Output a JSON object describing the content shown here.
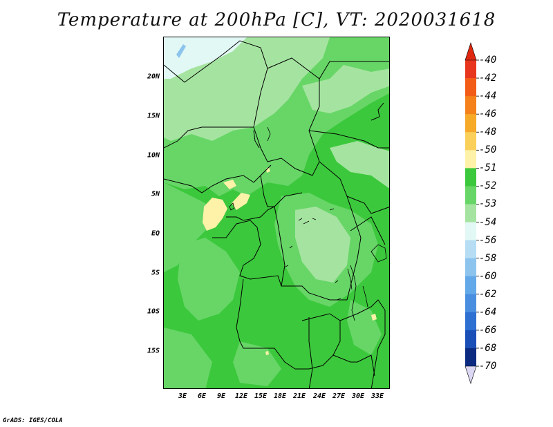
{
  "title": "Temperature at 200hPa [C], VT: 2020031618",
  "credit": "GrADS: IGES/COLA",
  "lat_labels": [
    "20N",
    "15N",
    "10N",
    "5N",
    "EQ",
    "5S",
    "10S",
    "15S"
  ],
  "lon_labels": [
    "3E",
    "6E",
    "9E",
    "12E",
    "15E",
    "18E",
    "21E",
    "24E",
    "27E",
    "30E",
    "33E"
  ],
  "colorbar": {
    "labels": [
      "-40",
      "-42",
      "-44",
      "-46",
      "-48",
      "-50",
      "-51",
      "-52",
      "-53",
      "-54",
      "-56",
      "-58",
      "-60",
      "-62",
      "-64",
      "-66",
      "-68",
      "-70"
    ],
    "colors": [
      "#e8361e",
      "#f25c17",
      "#f5811a",
      "#f7a928",
      "#fbd05a",
      "#fdf2a8",
      "#3cc83c",
      "#67d667",
      "#a5e4a0",
      "#e2f8f4",
      "#b6ddf4",
      "#8cc4ee",
      "#63a8e8",
      "#4a8ee0",
      "#2e70d2",
      "#1a4fb8",
      "#0b2a80"
    ],
    "top_arrow_color": "#e02810",
    "bottom_arrow_color": "#dcd8f4"
  },
  "map_colors": {
    "base": "#3cc83c",
    "mid": "#67d667",
    "light": "#a5e4a0",
    "pale": "#e2f8f4",
    "blue": "#8cc4ee",
    "yellow": "#fdf2a8"
  }
}
